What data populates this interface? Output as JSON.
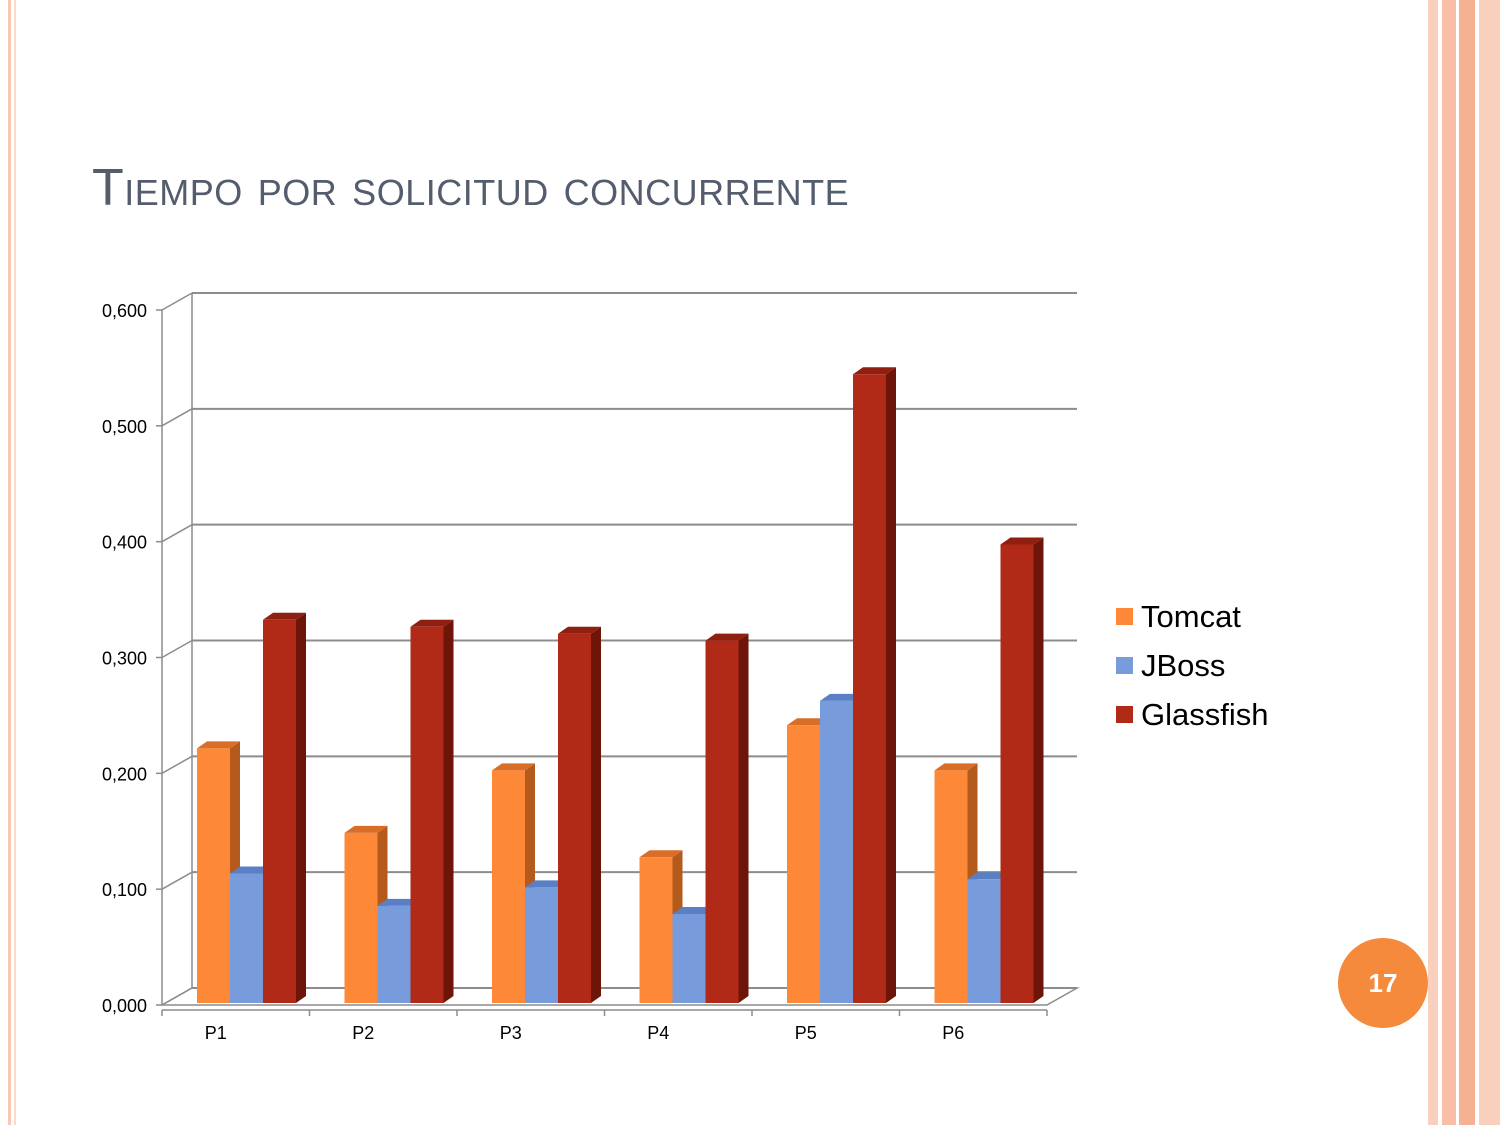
{
  "slide": {
    "title": "Tiempo por solicitud concurrente",
    "page_number": "17"
  },
  "colors": {
    "tomcat": "#fd8838",
    "jboss": "#789bdc",
    "glassfish": "#b12a17",
    "title_text": "#535d6e",
    "badge": "#f58a3c"
  },
  "chart_data": {
    "type": "bar",
    "categories": [
      "P1",
      "P2",
      "P3",
      "P4",
      "P5",
      "P6"
    ],
    "series": [
      {
        "name": "Tomcat",
        "values": [
          0.225,
          0.152,
          0.206,
          0.131,
          0.245,
          0.206
        ]
      },
      {
        "name": "JBoss",
        "values": [
          0.117,
          0.089,
          0.105,
          0.082,
          0.266,
          0.112
        ]
      },
      {
        "name": "Glassfish",
        "values": [
          0.336,
          0.33,
          0.324,
          0.318,
          0.548,
          0.401
        ]
      }
    ],
    "y_ticks": [
      "0,000",
      "0,100",
      "0,200",
      "0,300",
      "0,400",
      "0,500",
      "0,600"
    ],
    "ylim": [
      0,
      0.6
    ],
    "grid": true,
    "legend_position": "right",
    "style": "3d-clustered"
  }
}
